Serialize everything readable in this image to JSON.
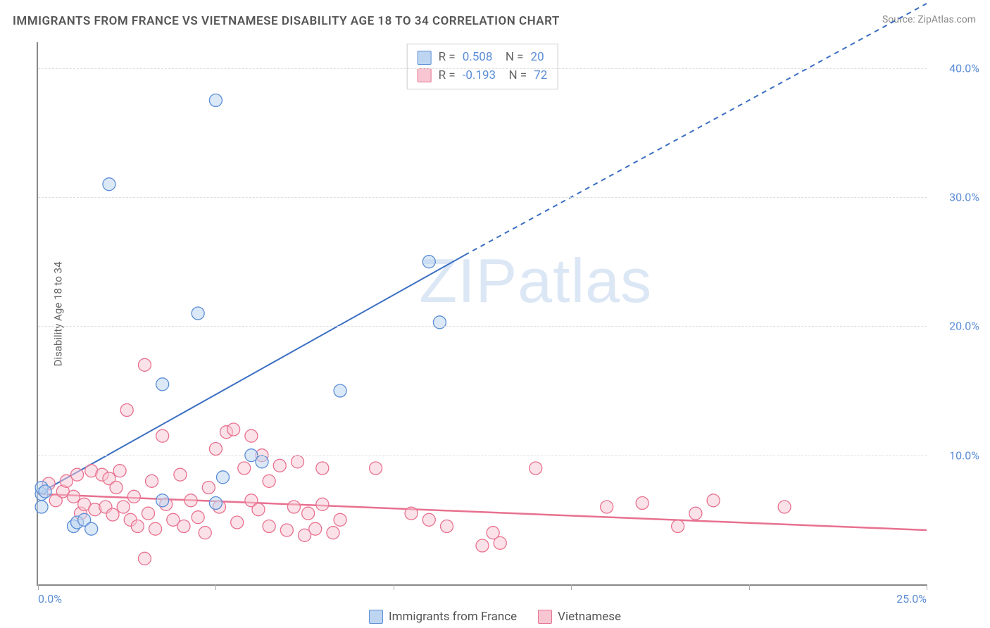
{
  "title": "IMMIGRANTS FROM FRANCE VS VIETNAMESE DISABILITY AGE 18 TO 34 CORRELATION CHART",
  "source": "Source: ZipAtlas.com",
  "y_axis_label": "Disability Age 18 to 34",
  "watermark_prefix": "ZIP",
  "watermark_suffix": "atlas",
  "chart": {
    "type": "scatter",
    "xlim": [
      0,
      25
    ],
    "ylim": [
      0,
      42
    ],
    "x_ticks": [
      0,
      5,
      10,
      15,
      20,
      25
    ],
    "x_tick_labels": {
      "0": "0.0%",
      "25": "25.0%"
    },
    "y_ticks": [
      10,
      20,
      30,
      40
    ],
    "y_tick_labels": [
      "10.0%",
      "20.0%",
      "30.0%",
      "40.0%"
    ],
    "grid_color": "#dddddd",
    "axis_color": "#888888",
    "background_color": "#ffffff",
    "series": [
      {
        "name": "Immigrants from France",
        "fill": "#bdd5f1",
        "stroke": "#5b8dd6",
        "fill_opacity": 0.55,
        "marker_r": 9,
        "R": "0.508",
        "N": "20",
        "trend": {
          "x1": 0,
          "y1": 7,
          "x2": 12,
          "y2": 25.5,
          "solid_until_x": 12,
          "dash_to_x": 25,
          "dash_to_y": 45,
          "color": "#3b6fc2",
          "width": 2
        },
        "points": [
          [
            0.1,
            7.0
          ],
          [
            0.1,
            7.5
          ],
          [
            0.2,
            7.2
          ],
          [
            0.1,
            6.0
          ],
          [
            1.0,
            4.5
          ],
          [
            1.1,
            4.8
          ],
          [
            1.3,
            5.0
          ],
          [
            1.5,
            4.3
          ],
          [
            2.0,
            31.0
          ],
          [
            3.5,
            15.5
          ],
          [
            4.5,
            21.0
          ],
          [
            5.0,
            37.5
          ],
          [
            5.2,
            8.3
          ],
          [
            5.0,
            6.3
          ],
          [
            6.0,
            10.0
          ],
          [
            6.3,
            9.5
          ],
          [
            8.5,
            15.0
          ],
          [
            11.0,
            25.0
          ],
          [
            11.3,
            20.3
          ],
          [
            3.5,
            6.5
          ]
        ]
      },
      {
        "name": "Vietnamese",
        "fill": "#f7c6d2",
        "stroke": "#e8718f",
        "fill_opacity": 0.5,
        "marker_r": 9,
        "R": "-0.193",
        "N": "72",
        "trend": {
          "x1": 0,
          "y1": 7.0,
          "x2": 25,
          "y2": 4.2,
          "color": "#e8718f",
          "width": 2.5
        },
        "points": [
          [
            0.3,
            7.8
          ],
          [
            0.5,
            6.5
          ],
          [
            0.7,
            7.2
          ],
          [
            0.8,
            8.0
          ],
          [
            1.0,
            6.8
          ],
          [
            1.1,
            8.5
          ],
          [
            1.2,
            5.5
          ],
          [
            1.3,
            6.2
          ],
          [
            1.5,
            8.8
          ],
          [
            1.6,
            5.8
          ],
          [
            1.8,
            8.5
          ],
          [
            1.9,
            6.0
          ],
          [
            2.0,
            8.2
          ],
          [
            2.1,
            5.4
          ],
          [
            2.2,
            7.5
          ],
          [
            2.3,
            8.8
          ],
          [
            2.5,
            13.5
          ],
          [
            2.6,
            5.0
          ],
          [
            2.7,
            6.8
          ],
          [
            2.8,
            4.5
          ],
          [
            3.0,
            17.0
          ],
          [
            3.1,
            5.5
          ],
          [
            3.2,
            8.0
          ],
          [
            3.3,
            4.3
          ],
          [
            3.5,
            11.5
          ],
          [
            3.0,
            2.0
          ],
          [
            3.6,
            6.2
          ],
          [
            3.8,
            5.0
          ],
          [
            4.0,
            8.5
          ],
          [
            4.1,
            4.5
          ],
          [
            4.3,
            6.5
          ],
          [
            4.5,
            5.2
          ],
          [
            4.7,
            4.0
          ],
          [
            5.0,
            10.5
          ],
          [
            5.1,
            6.0
          ],
          [
            5.3,
            11.8
          ],
          [
            5.5,
            12.0
          ],
          [
            5.6,
            4.8
          ],
          [
            5.8,
            9.0
          ],
          [
            6.0,
            11.5
          ],
          [
            6.0,
            6.5
          ],
          [
            6.2,
            5.8
          ],
          [
            6.3,
            10.0
          ],
          [
            6.5,
            4.5
          ],
          [
            6.8,
            9.2
          ],
          [
            7.0,
            4.2
          ],
          [
            7.2,
            6.0
          ],
          [
            7.3,
            9.5
          ],
          [
            7.5,
            3.8
          ],
          [
            7.6,
            5.5
          ],
          [
            7.8,
            4.3
          ],
          [
            8.0,
            9.0
          ],
          [
            8.0,
            6.2
          ],
          [
            8.3,
            4.0
          ],
          [
            8.5,
            5.0
          ],
          [
            9.5,
            9.0
          ],
          [
            10.5,
            5.5
          ],
          [
            11.0,
            5.0
          ],
          [
            11.5,
            4.5
          ],
          [
            12.5,
            3.0
          ],
          [
            12.8,
            4.0
          ],
          [
            13.0,
            3.2
          ],
          [
            14.0,
            9.0
          ],
          [
            16.0,
            6.0
          ],
          [
            17.0,
            6.3
          ],
          [
            18.5,
            5.5
          ],
          [
            19.0,
            6.5
          ],
          [
            21.0,
            6.0
          ],
          [
            18.0,
            4.5
          ],
          [
            6.5,
            8.0
          ],
          [
            4.8,
            7.5
          ],
          [
            2.4,
            6.0
          ]
        ]
      }
    ],
    "legend_labels": [
      "Immigrants from France",
      "Vietnamese"
    ]
  }
}
